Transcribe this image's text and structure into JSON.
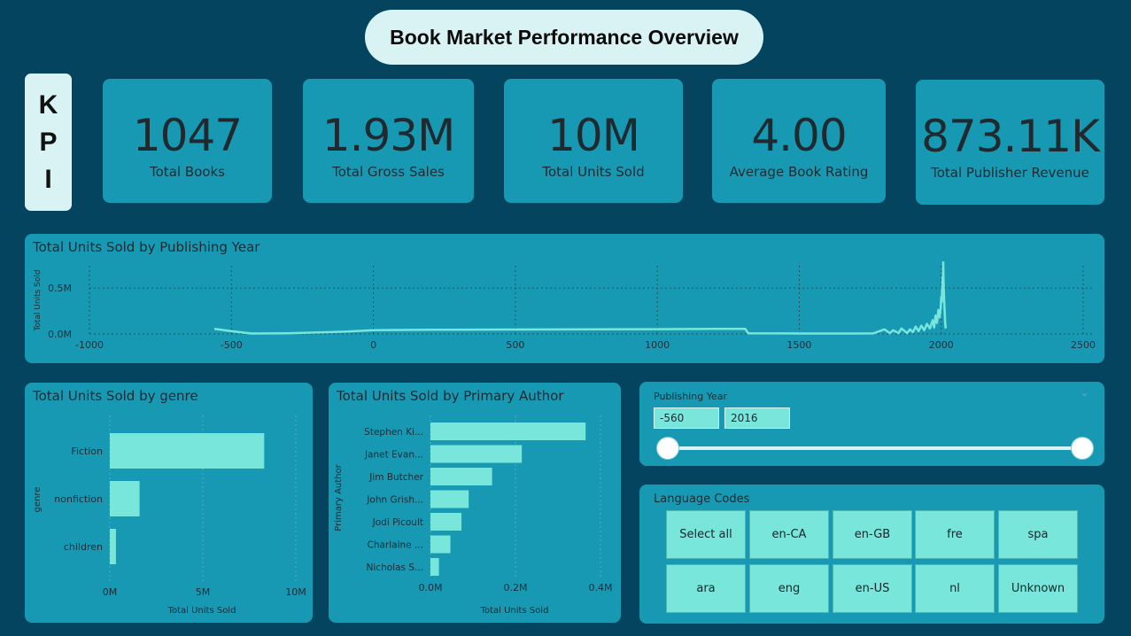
{
  "header": {
    "title": "Book Market Performance Overview"
  },
  "kpi_tag": {
    "letters": [
      "K",
      "P",
      "I"
    ]
  },
  "kpis": [
    {
      "value": "1047",
      "label": "Total Books"
    },
    {
      "value": "1.93M",
      "label": "Total Gross Sales"
    },
    {
      "value": "10M",
      "label": "Total Units Sold"
    },
    {
      "value": "4.00",
      "label": "Average Book Rating"
    },
    {
      "value": "873.11K",
      "label": "Total Publisher Revenue"
    }
  ],
  "colors": {
    "background": "#04445f",
    "card": "#1899b3",
    "accent": "#78e6da",
    "pill": "#d9f3f5"
  },
  "chart_data": [
    {
      "type": "line",
      "title": "Total Units Sold by Publishing Year",
      "xlabel": "",
      "ylabel": "Total Units Sold",
      "xlim": [
        -1000,
        2500
      ],
      "ylim": [
        0,
        800000
      ],
      "x_ticks": [
        "-1000",
        "-500",
        "0",
        "500",
        "1000",
        "1500",
        "2000",
        "2500"
      ],
      "y_ticks": [
        "0.0M",
        "0.5M"
      ],
      "series": [
        {
          "name": "Total Units Sold",
          "x": [
            -560,
            -500,
            -430,
            -300,
            -100,
            0,
            200,
            500,
            800,
            1000,
            1200,
            1310,
            1320,
            1500,
            1700,
            1760,
            1800,
            1820,
            1830,
            1850,
            1860,
            1880,
            1890,
            1900,
            1910,
            1920,
            1930,
            1940,
            1950,
            1960,
            1970,
            1975,
            1980,
            1985,
            1990,
            1995,
            1998,
            2000,
            2002,
            2003,
            2004,
            2005,
            2006,
            2007,
            2008,
            2010,
            2012,
            2014,
            2016
          ],
          "y": [
            55000,
            30000,
            5000,
            8000,
            25000,
            40000,
            45000,
            48000,
            50000,
            52000,
            55000,
            55000,
            8000,
            5000,
            5000,
            6000,
            50000,
            8000,
            40000,
            10000,
            60000,
            10000,
            50000,
            20000,
            80000,
            30000,
            90000,
            40000,
            110000,
            60000,
            150000,
            70000,
            200000,
            120000,
            260000,
            180000,
            280000,
            400000,
            350000,
            500000,
            450000,
            620000,
            550000,
            780000,
            600000,
            400000,
            250000,
            120000,
            60000
          ]
        }
      ]
    },
    {
      "type": "bar",
      "title": "Total Units Sold by genre",
      "orientation": "horizontal",
      "xlabel": "Total Units Sold",
      "ylabel": "genre",
      "xlim": [
        0,
        10000000
      ],
      "x_ticks": [
        "0M",
        "5M",
        "10M"
      ],
      "categories": [
        "Fiction",
        "nonfiction",
        "children"
      ],
      "values": [
        8300000,
        1600000,
        330000
      ]
    },
    {
      "type": "bar",
      "title": "Total Units Sold by Primary Author",
      "orientation": "horizontal",
      "xlabel": "Total Units Sold",
      "ylabel": "Primary Author",
      "xlim": [
        0,
        400000
      ],
      "x_ticks": [
        "0.0M",
        "0.2M",
        "0.4M"
      ],
      "categories": [
        "Stephen Ki...",
        "Janet Evan...",
        "Jim Butcher",
        "John Grish...",
        "Jodi Picoult",
        "Charlaine ...",
        "Nicholas S..."
      ],
      "values": [
        365000,
        215000,
        145000,
        90000,
        73000,
        47000,
        20000
      ]
    }
  ],
  "year_slicer": {
    "label": "Publishing Year",
    "min": "-560",
    "max": "2016",
    "range_low": 0.0,
    "range_high": 1.0
  },
  "language_slicer": {
    "title": "Language Codes",
    "options": [
      "Select all",
      "en-CA",
      "en-GB",
      "fre",
      "spa",
      "ara",
      "eng",
      "en-US",
      "nl",
      "Unknown"
    ]
  }
}
